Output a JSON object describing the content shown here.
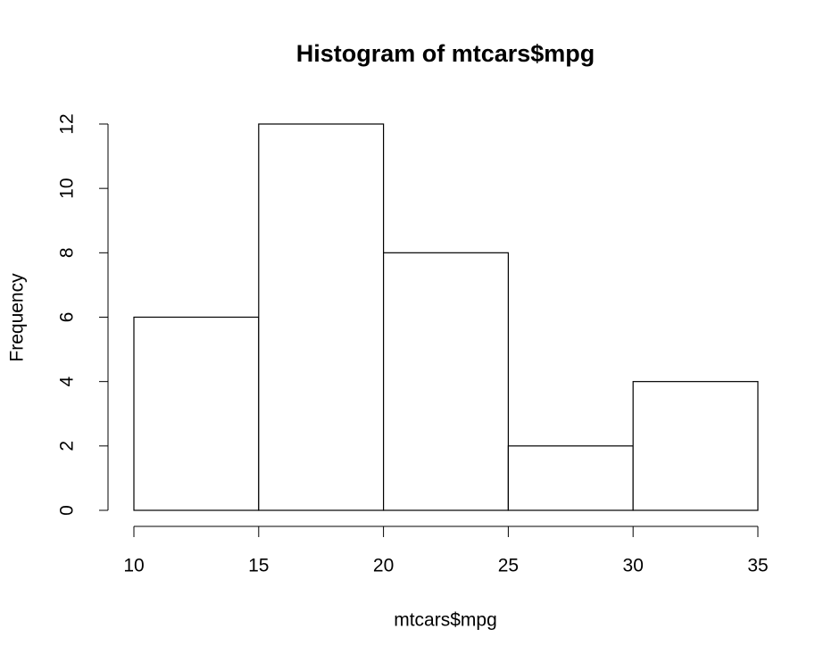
{
  "chart_data": {
    "type": "histogram",
    "title": "Histogram of mtcars$mpg",
    "x_label": "mtcars$mpg",
    "y_label": "Frequency",
    "bins": [
      10,
      15,
      20,
      25,
      30,
      35
    ],
    "values": [
      6,
      12,
      8,
      2,
      4
    ],
    "color": "#ffffff",
    "edgecolor": "#000000",
    "xlim": [
      10,
      35
    ],
    "xticks": [
      10,
      15,
      20,
      25,
      30,
      35
    ],
    "ylim": [
      0,
      12
    ],
    "yticks": [
      0,
      2,
      4,
      6,
      8,
      10,
      12
    ],
    "grid": false
  }
}
